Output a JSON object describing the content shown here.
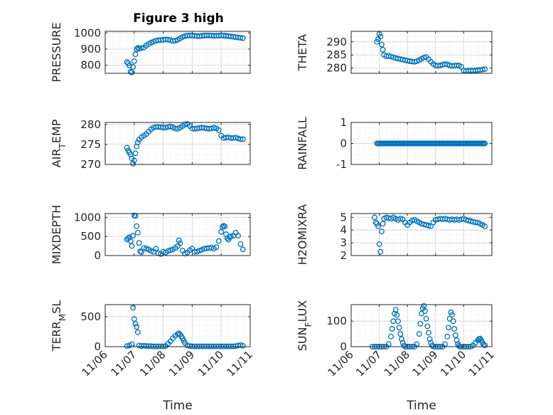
{
  "figure": {
    "title": "Figure 3 high",
    "xlabel": "Time",
    "x_tick_labels": [
      "11/06",
      "11/07",
      "11/08",
      "11/09",
      "11/10",
      "11/11"
    ],
    "marker_color": "#0072BD",
    "grid_color": "#dcdcdc",
    "axes_color": "#262626"
  },
  "chart_data": [
    {
      "type": "scatter",
      "ylabel": "PRESSURE",
      "ylim": [
        750,
        1010
      ],
      "yticks": [
        800,
        900,
        1000
      ],
      "x": [
        "11/06 18:00",
        "11/06 19:00",
        "11/06 20:00",
        "11/06 21:00",
        "11/06 22:00",
        "11/06 23:00",
        "11/07 00:00",
        "11/07 01:00",
        "11/07 02:00",
        "11/07 03:00",
        "11/07 04:00",
        "11/07 06:00",
        "11/07 08:00",
        "11/07 10:00",
        "11/07 12:00",
        "11/07 14:00",
        "11/07 16:00",
        "11/07 18:00",
        "11/07 20:00",
        "11/07 22:00",
        "11/08 00:00",
        "11/08 02:00",
        "11/08 04:00",
        "11/08 06:00",
        "11/08 08:00",
        "11/08 10:00",
        "11/08 12:00",
        "11/08 14:00",
        "11/08 16:00",
        "11/08 18:00",
        "11/08 20:00",
        "11/08 22:00",
        "11/09 00:00",
        "11/09 02:00",
        "11/09 04:00",
        "11/09 06:00",
        "11/09 08:00",
        "11/09 10:00",
        "11/09 12:00",
        "11/09 14:00",
        "11/09 16:00",
        "11/09 18:00",
        "11/09 20:00",
        "11/09 22:00",
        "11/10 00:00",
        "11/10 02:00",
        "11/10 04:00",
        "11/10 06:00",
        "11/10 08:00",
        "11/10 10:00",
        "11/10 12:00",
        "11/10 14:00",
        "11/10 16:00",
        "11/10 18:00"
      ],
      "y": [
        820,
        812,
        798,
        760,
        755,
        790,
        825,
        868,
        900,
        908,
        902,
        906,
        910,
        922,
        932,
        940,
        946,
        952,
        955,
        955,
        958,
        960,
        958,
        956,
        950,
        952,
        958,
        966,
        975,
        980,
        984,
        984,
        984,
        982,
        980,
        980,
        982,
        984,
        985,
        984,
        984,
        982,
        982,
        983,
        984,
        983,
        982,
        980,
        978,
        976,
        974,
        972,
        970,
        968
      ]
    },
    {
      "type": "scatter",
      "ylabel": "THETA",
      "ylim": [
        278,
        294
      ],
      "yticks": [
        280,
        285,
        290
      ],
      "x": [
        "11/06 22:00",
        "11/06 23:00",
        "11/07 00:00",
        "11/07 01:00",
        "11/07 02:00",
        "11/07 03:00",
        "11/07 04:00",
        "11/07 06:00",
        "11/07 08:00",
        "11/07 10:00",
        "11/07 12:00",
        "11/07 14:00",
        "11/07 16:00",
        "11/07 18:00",
        "11/07 20:00",
        "11/07 22:00",
        "11/08 00:00",
        "11/08 02:00",
        "11/08 04:00",
        "11/08 06:00",
        "11/08 08:00",
        "11/08 10:00",
        "11/08 12:00",
        "11/08 14:00",
        "11/08 16:00",
        "11/08 18:00",
        "11/08 20:00",
        "11/08 22:00",
        "11/09 00:00",
        "11/09 02:00",
        "11/09 04:00",
        "11/09 06:00",
        "11/09 08:00",
        "11/09 10:00",
        "11/09 12:00",
        "11/09 14:00",
        "11/09 16:00",
        "11/09 18:00",
        "11/09 20:00",
        "11/09 22:00",
        "11/10 00:00",
        "11/10 02:00",
        "11/10 04:00",
        "11/10 06:00",
        "11/10 08:00",
        "11/10 10:00",
        "11/10 12:00",
        "11/10 14:00",
        "11/10 16:00",
        "11/10 18:00"
      ],
      "y": [
        290,
        291,
        293,
        292,
        289,
        287,
        285,
        284.5,
        284.6,
        284.4,
        284.1,
        283.8,
        283.6,
        283.4,
        283.2,
        283.0,
        282.8,
        282.6,
        282.5,
        282.4,
        282.6,
        283.0,
        283.5,
        284.0,
        284.2,
        283.4,
        282.4,
        281.5,
        281.0,
        280.9,
        281.0,
        281.3,
        281.5,
        281.4,
        281.0,
        280.8,
        280.9,
        281.0,
        281.0,
        280.5,
        279.0,
        278.9,
        279.0,
        279.1,
        279.0,
        279.1,
        279.2,
        279.3,
        279.4,
        279.6
      ]
    },
    {
      "type": "scatter",
      "ylabel": "AIR_TEMP",
      "ylim": [
        270,
        280.5
      ],
      "yticks": [
        270,
        275,
        280
      ],
      "x": [
        "11/06 18:00",
        "11/06 19:00",
        "11/06 20:00",
        "11/06 21:00",
        "11/06 22:00",
        "11/06 23:00",
        "11/07 00:00",
        "11/07 01:00",
        "11/07 02:00",
        "11/07 03:00",
        "11/07 04:00",
        "11/07 06:00",
        "11/07 08:00",
        "11/07 10:00",
        "11/07 12:00",
        "11/07 14:00",
        "11/07 16:00",
        "11/07 18:00",
        "11/07 20:00",
        "11/07 22:00",
        "11/08 00:00",
        "11/08 02:00",
        "11/08 04:00",
        "11/08 06:00",
        "11/08 08:00",
        "11/08 10:00",
        "11/08 12:00",
        "11/08 14:00",
        "11/08 16:00",
        "11/08 18:00",
        "11/08 20:00",
        "11/08 22:00",
        "11/09 00:00",
        "11/09 02:00",
        "11/09 04:00",
        "11/09 06:00",
        "11/09 08:00",
        "11/09 10:00",
        "11/09 12:00",
        "11/09 14:00",
        "11/09 16:00",
        "11/09 18:00",
        "11/09 20:00",
        "11/09 22:00",
        "11/10 00:00",
        "11/10 02:00",
        "11/10 04:00",
        "11/10 06:00",
        "11/10 08:00",
        "11/10 10:00",
        "11/10 12:00",
        "11/10 14:00",
        "11/10 16:00",
        "11/10 18:00"
      ],
      "y": [
        274.2,
        273.5,
        273,
        272.5,
        271.5,
        270.2,
        271,
        272.8,
        274.5,
        275.5,
        276.2,
        276.8,
        277.2,
        277.6,
        278.2,
        278.8,
        279.2,
        279.4,
        279.4,
        279.3,
        279.2,
        279.2,
        279.4,
        279.5,
        279.3,
        279.0,
        278.9,
        279.2,
        279.6,
        280.0,
        280.1,
        279.6,
        279.0,
        278.9,
        279.0,
        279.1,
        279.2,
        279.1,
        279.0,
        278.9,
        279.0,
        279.2,
        279.0,
        278.6,
        277.2,
        276.6,
        276.7,
        276.8,
        276.6,
        276.6,
        276.7,
        276.5,
        276.3,
        276.3
      ]
    },
    {
      "type": "scatter",
      "ylabel": "RAINFALL",
      "ylim": [
        -1,
        1
      ],
      "yticks": [
        -1,
        0,
        1
      ],
      "x": [
        "11/06 22:00",
        "11/10 18:00"
      ],
      "y": [
        0,
        0
      ],
      "note": "continuous hourly series of zeros between the two x values"
    },
    {
      "type": "scatter",
      "ylabel": "MIXDEPTH",
      "ylim": [
        0,
        1100
      ],
      "yticks": [
        0,
        500,
        1000
      ],
      "x": [
        "11/06 18:00",
        "11/06 19:00",
        "11/06 20:00",
        "11/06 21:00",
        "11/06 22:00",
        "11/06 23:00",
        "11/07 00:00",
        "11/07 01:00",
        "11/07 02:00",
        "11/07 03:00",
        "11/07 04:00",
        "11/07 05:00",
        "11/07 06:00",
        "11/07 08:00",
        "11/07 10:00",
        "11/07 12:00",
        "11/07 14:00",
        "11/07 16:00",
        "11/07 18:00",
        "11/07 20:00",
        "11/07 22:00",
        "11/08 00:00",
        "11/08 02:00",
        "11/08 04:00",
        "11/08 06:00",
        "11/08 08:00",
        "11/08 10:00",
        "11/08 12:00",
        "11/08 13:00",
        "11/08 14:00",
        "11/08 16:00",
        "11/08 18:00",
        "11/08 20:00",
        "11/08 22:00",
        "11/09 00:00",
        "11/09 02:00",
        "11/09 04:00",
        "11/09 06:00",
        "11/09 08:00",
        "11/09 10:00",
        "11/09 12:00",
        "11/09 14:00",
        "11/09 16:00",
        "11/09 18:00",
        "11/09 20:00",
        "11/09 22:00",
        "11/10 00:00",
        "11/10 01:00",
        "11/10 02:00",
        "11/10 03:00",
        "11/10 04:00",
        "11/10 05:00",
        "11/10 06:00",
        "11/10 07:00",
        "11/10 08:00",
        "11/10 10:00",
        "11/10 12:00",
        "11/10 14:00",
        "11/10 16:00",
        "11/10 18:00"
      ],
      "y": [
        420,
        450,
        480,
        380,
        250,
        520,
        1050,
        1040,
        770,
        600,
        330,
        110,
        90,
        200,
        180,
        160,
        120,
        100,
        180,
        60,
        40,
        100,
        80,
        120,
        140,
        160,
        200,
        250,
        400,
        320,
        130,
        50,
        80,
        140,
        180,
        100,
        100,
        130,
        150,
        180,
        190,
        200,
        210,
        180,
        220,
        380,
        620,
        750,
        780,
        760,
        560,
        450,
        420,
        480,
        500,
        520,
        600,
        520,
        300,
        160
      ]
    },
    {
      "type": "scatter",
      "ylabel": "H2OMIXRA",
      "ylim": [
        2,
        5.3
      ],
      "yticks": [
        2,
        3,
        4,
        5
      ],
      "x": [
        "11/06 20:00",
        "11/06 21:00",
        "11/06 22:00",
        "11/06 23:00",
        "11/07 00:00",
        "11/07 01:00",
        "11/07 02:00",
        "11/07 03:00",
        "11/07 04:00",
        "11/07 06:00",
        "11/07 08:00",
        "11/07 10:00",
        "11/07 12:00",
        "11/07 14:00",
        "11/07 16:00",
        "11/07 18:00",
        "11/07 20:00",
        "11/07 22:00",
        "11/08 00:00",
        "11/08 02:00",
        "11/08 04:00",
        "11/08 06:00",
        "11/08 08:00",
        "11/08 10:00",
        "11/08 12:00",
        "11/08 14:00",
        "11/08 16:00",
        "11/08 18:00",
        "11/08 20:00",
        "11/08 22:00",
        "11/09 00:00",
        "11/09 02:00",
        "11/09 04:00",
        "11/09 06:00",
        "11/09 08:00",
        "11/09 10:00",
        "11/09 12:00",
        "11/09 14:00",
        "11/09 16:00",
        "11/09 18:00",
        "11/09 20:00",
        "11/09 22:00",
        "11/10 00:00",
        "11/10 02:00",
        "11/10 04:00",
        "11/10 06:00",
        "11/10 08:00",
        "11/10 10:00",
        "11/10 12:00",
        "11/10 14:00",
        "11/10 16:00",
        "11/10 18:00"
      ],
      "y": [
        5.0,
        4.6,
        4.5,
        4.3,
        2.9,
        2.3,
        3.9,
        4.5,
        4.9,
        5.0,
        4.95,
        4.9,
        5.0,
        4.9,
        4.8,
        4.9,
        4.85,
        4.6,
        4.4,
        4.6,
        4.75,
        4.8,
        4.7,
        4.6,
        4.5,
        4.45,
        4.4,
        4.35,
        4.3,
        4.6,
        4.8,
        4.85,
        4.9,
        4.85,
        4.9,
        4.85,
        4.8,
        4.85,
        4.8,
        4.85,
        4.8,
        4.85,
        4.9,
        4.8,
        4.75,
        4.7,
        4.65,
        4.6,
        4.6,
        4.5,
        4.4,
        4.3
      ]
    },
    {
      "type": "scatter",
      "ylabel": "TERR_MSL",
      "ylim": [
        0,
        700
      ],
      "yticks": [
        0,
        500
      ],
      "x": [
        "11/06 18:00",
        "11/06 20:00",
        "11/06 22:00",
        "11/06 23:00",
        "11/07 00:00",
        "11/07 01:00",
        "11/07 02:00",
        "11/07 03:00",
        "11/07 04:00",
        "11/07 06:00",
        "11/07 08:00",
        "11/07 10:00",
        "11/07 12:00",
        "11/07 14:00",
        "11/07 16:00",
        "11/07 18:00",
        "11/07 20:00",
        "11/07 22:00",
        "11/08 00:00",
        "11/08 02:00",
        "11/08 04:00",
        "11/08 06:00",
        "11/08 08:00",
        "11/08 10:00",
        "11/08 12:00",
        "11/08 13:00",
        "11/08 14:00",
        "11/08 15:00",
        "11/08 16:00",
        "11/08 17:00",
        "11/08 18:00",
        "11/08 20:00",
        "11/08 22:00",
        "11/09 00:00",
        "11/09 02:00",
        "11/09 04:00",
        "11/09 06:00",
        "11/09 08:00",
        "11/09 10:00",
        "11/09 12:00",
        "11/09 14:00",
        "11/09 16:00",
        "11/09 18:00",
        "11/09 20:00",
        "11/09 22:00",
        "11/10 00:00",
        "11/10 02:00",
        "11/10 04:00",
        "11/10 06:00",
        "11/10 08:00",
        "11/10 10:00",
        "11/10 12:00",
        "11/10 14:00",
        "11/10 16:00",
        "11/10 18:00"
      ],
      "y": [
        10,
        20,
        40,
        650,
        460,
        380,
        330,
        240,
        20,
        10,
        15,
        10,
        10,
        8,
        5,
        5,
        5,
        5,
        5,
        10,
        50,
        90,
        140,
        180,
        210,
        220,
        200,
        170,
        140,
        100,
        60,
        20,
        10,
        5,
        5,
        5,
        5,
        5,
        5,
        5,
        5,
        5,
        5,
        5,
        5,
        5,
        5,
        5,
        5,
        5,
        5,
        10,
        20,
        25,
        15
      ]
    },
    {
      "type": "scatter",
      "ylabel": "SUN_FLUX",
      "ylim": [
        0,
        165
      ],
      "yticks": [
        0,
        100
      ],
      "x": [
        "11/06 18:00",
        "11/06 20:00",
        "11/06 22:00",
        "11/07 00:00",
        "11/07 02:00",
        "11/07 04:00",
        "11/07 06:00",
        "11/07 08:00",
        "11/07 10:00",
        "11/07 11:00",
        "11/07 12:00",
        "11/07 13:00",
        "11/07 14:00",
        "11/07 15:00",
        "11/07 16:00",
        "11/07 17:00",
        "11/07 18:00",
        "11/07 19:00",
        "11/07 20:00",
        "11/07 21:00",
        "11/07 22:00",
        "11/08 00:00",
        "11/08 02:00",
        "11/08 04:00",
        "11/08 06:00",
        "11/08 08:00",
        "11/08 10:00",
        "11/08 11:00",
        "11/08 12:00",
        "11/08 13:00",
        "11/08 14:00",
        "11/08 15:00",
        "11/08 16:00",
        "11/08 17:00",
        "11/08 18:00",
        "11/08 19:00",
        "11/08 20:00",
        "11/08 21:00",
        "11/08 22:00",
        "11/09 00:00",
        "11/09 02:00",
        "11/09 04:00",
        "11/09 06:00",
        "11/09 08:00",
        "11/09 10:00",
        "11/09 11:00",
        "11/09 12:00",
        "11/09 13:00",
        "11/09 14:00",
        "11/09 15:00",
        "11/09 16:00",
        "11/09 17:00",
        "11/09 18:00",
        "11/09 19:00",
        "11/09 20:00",
        "11/09 21:00",
        "11/09 22:00",
        "11/10 00:00",
        "11/10 02:00",
        "11/10 04:00",
        "11/10 06:00",
        "11/10 08:00",
        "11/10 10:00",
        "11/10 12:00",
        "11/10 13:00",
        "11/10 14:00",
        "11/10 15:00",
        "11/10 16:00",
        "11/10 17:00",
        "11/10 18:00"
      ],
      "y": [
        0,
        0,
        0,
        0,
        0,
        0,
        0,
        10,
        40,
        70,
        100,
        130,
        145,
        125,
        100,
        75,
        50,
        30,
        15,
        5,
        0,
        0,
        0,
        0,
        0,
        10,
        50,
        90,
        130,
        150,
        160,
        140,
        110,
        80,
        55,
        30,
        15,
        5,
        0,
        0,
        0,
        0,
        0,
        10,
        40,
        75,
        110,
        135,
        125,
        100,
        70,
        45,
        25,
        10,
        3,
        0,
        0,
        0,
        0,
        0,
        0,
        5,
        15,
        25,
        30,
        32,
        25,
        15,
        8,
        5
      ]
    }
  ]
}
